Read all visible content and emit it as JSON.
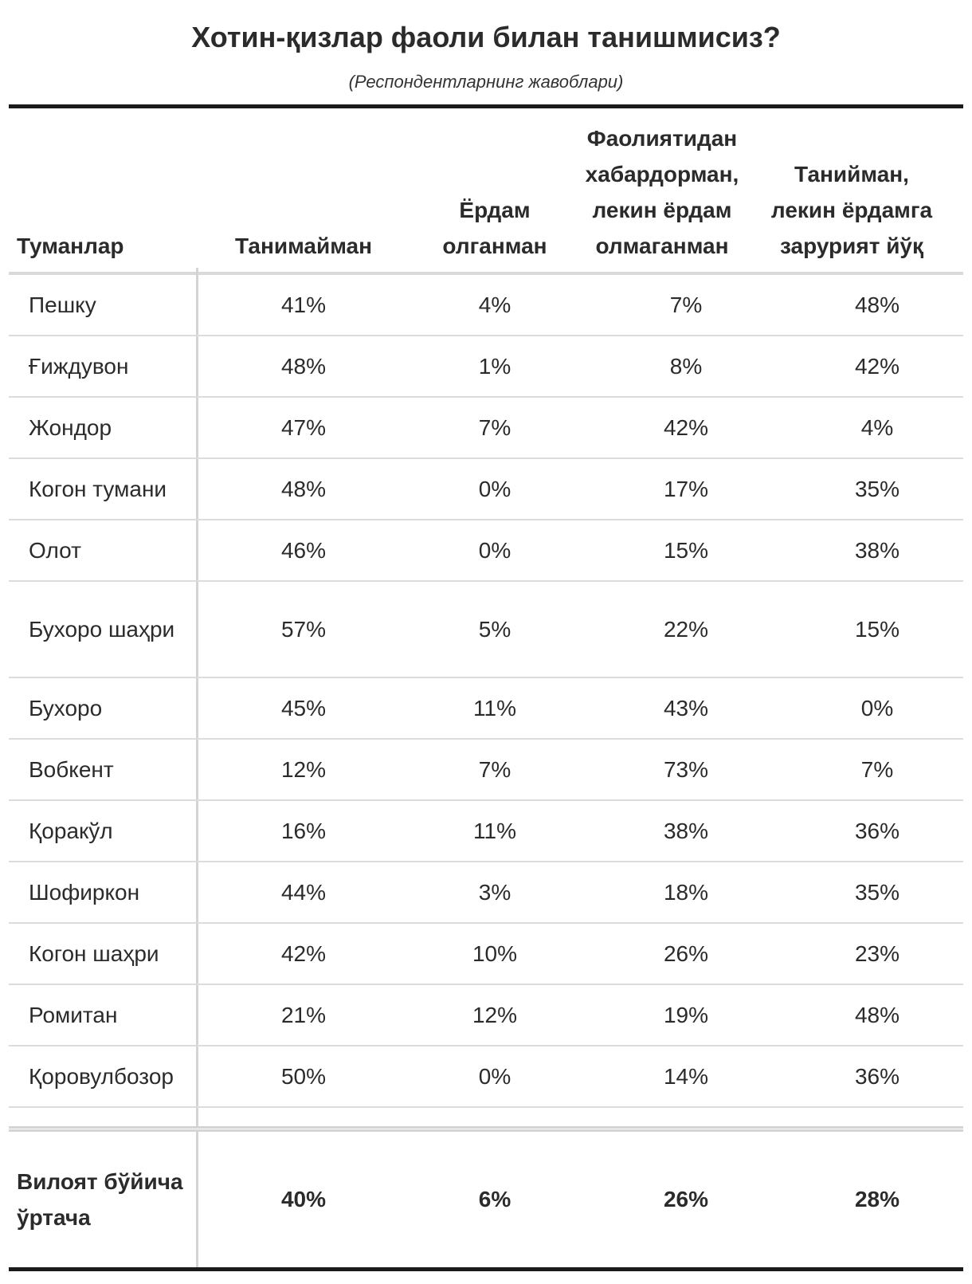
{
  "title": "Хотин-қизлар фаоли билан танишмисиз?",
  "subtitle": "(Респондентларнинг жавоблари)",
  "columns": [
    "Туманлар",
    "Танимайман",
    "Ёрдам олганман",
    "Фаолиятидан хабардорман, лекин ёрдам олмаганман",
    "Танийман, лекин ёрдамга зарурият йўқ"
  ],
  "rows": [
    {
      "name": "Пешку",
      "values": [
        "41%",
        "4%",
        "7%",
        "48%"
      ]
    },
    {
      "name": "Ғиждувон",
      "values": [
        "48%",
        "1%",
        "8%",
        "42%"
      ]
    },
    {
      "name": "Жондор",
      "values": [
        "47%",
        "7%",
        "42%",
        "4%"
      ]
    },
    {
      "name": "Когон тумани",
      "values": [
        "48%",
        "0%",
        "17%",
        "35%"
      ]
    },
    {
      "name": "Олот",
      "values": [
        "46%",
        "0%",
        "15%",
        "38%"
      ]
    },
    {
      "name": "Бухоро шаҳри",
      "values": [
        "57%",
        "5%",
        "22%",
        "15%"
      ]
    },
    {
      "name": "Бухоро",
      "values": [
        "45%",
        "11%",
        "43%",
        "0%"
      ]
    },
    {
      "name": "Вобкент",
      "values": [
        "12%",
        "7%",
        "73%",
        "7%"
      ]
    },
    {
      "name": "Қоракўл",
      "values": [
        "16%",
        "11%",
        "38%",
        "36%"
      ]
    },
    {
      "name": "Шофиркон",
      "values": [
        "44%",
        "3%",
        "18%",
        "35%"
      ]
    },
    {
      "name": "Когон шаҳри",
      "values": [
        "42%",
        "10%",
        "26%",
        "23%"
      ]
    },
    {
      "name": "Ромитан",
      "values": [
        "21%",
        "12%",
        "19%",
        "48%"
      ]
    },
    {
      "name": "Қоровулбозор",
      "values": [
        "50%",
        "0%",
        "14%",
        "36%"
      ]
    }
  ],
  "total": {
    "name": "Вилоят бўйича ўртача",
    "values": [
      "40%",
      "6%",
      "26%",
      "28%"
    ]
  }
}
